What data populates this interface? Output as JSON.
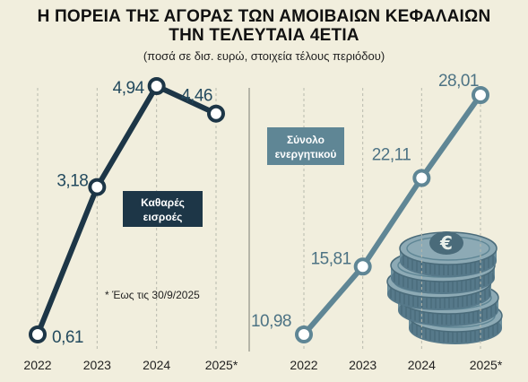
{
  "header": {
    "title_line1": "Η ΠΟΡΕΙΑ ΤΗΣ ΑΓΟΡΑΣ ΤΩΝ ΑΜΟΙΒΑΙΩΝ ΚΕΦΑΛΑΙΩΝ",
    "title_line2": "ΤΗΝ ΤΕΛΕΥΤΑΙΑ 4ΕΤΙΑ",
    "subtitle": "(ποσά σε δισ. ευρώ, στοιχεία τέλους περιόδου)"
  },
  "chart_data": [
    {
      "type": "line",
      "x": [
        "2022",
        "2023",
        "2024",
        "2025*"
      ],
      "values": [
        0.61,
        3.18,
        4.94,
        4.46
      ],
      "labels": [
        "0,61",
        "3,18",
        "4,94",
        "4,46"
      ],
      "series_label_line1": "Καθαρές",
      "series_label_line2": "εισροές",
      "footnote": "* Έως τις 30/9/2025",
      "ylim": [
        0.61,
        4.94
      ],
      "color": "#1d3647",
      "label_color": "#234a5e"
    },
    {
      "type": "line",
      "x": [
        "2022",
        "2023",
        "2024",
        "2025*"
      ],
      "values": [
        10.98,
        15.81,
        22.11,
        28.01
      ],
      "labels": [
        "10,98",
        "15,81",
        "22,11",
        "28,01"
      ],
      "series_label_line1": "Σύνολο",
      "series_label_line2": "ενεργητικού",
      "ylim": [
        10.98,
        28.01
      ],
      "color": "#5f8695",
      "label_color": "#4d7384"
    }
  ]
}
